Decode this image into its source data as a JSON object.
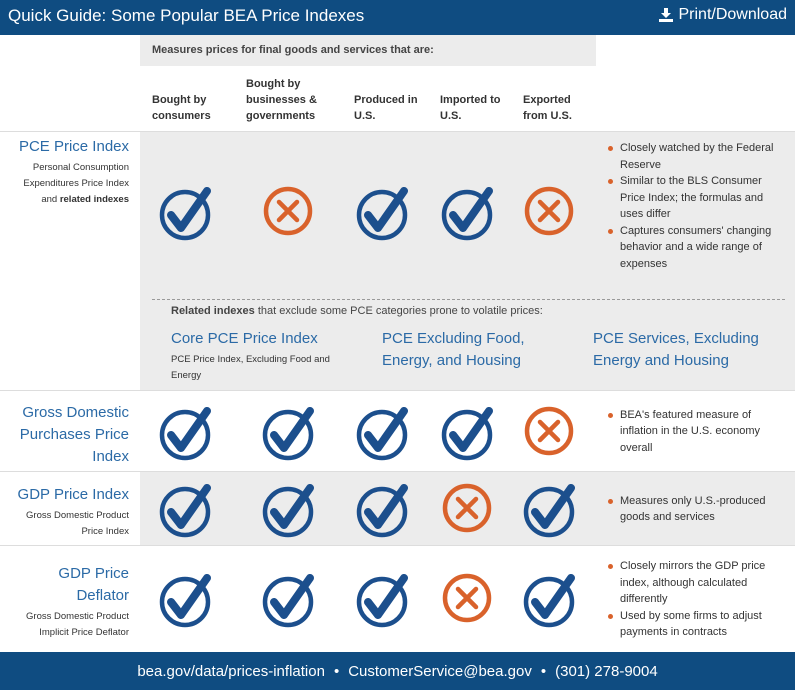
{
  "header": {
    "title": "Quick Guide: Some Popular BEA Price Indexes",
    "action": "Print/Download"
  },
  "caption": "Measures prices for final goods and services that are:",
  "columns": [
    "Bought by consumers",
    "Bought by businesses & governments",
    "Produced in U.S.",
    "Imported to U.S.",
    "Exported from U.S."
  ],
  "rows": [
    {
      "name": "PCE Price Index",
      "subtitle": "Personal Consumption Expenditures Price Index and",
      "subtitle_bold": "related indexes",
      "marks": [
        true,
        false,
        true,
        true,
        false
      ],
      "notes": [
        "Closely watched by the Federal Reserve",
        "Similar to the BLS Consumer Price Index; the formulas and uses differ",
        "Captures consumers' changing behavior and a wide range of expenses"
      ]
    },
    {
      "name": "Gross Domestic Purchases Price Index",
      "marks": [
        true,
        true,
        true,
        true,
        false
      ],
      "notes": [
        "BEA's featured measure of inflation in the U.S. economy overall"
      ]
    },
    {
      "name": "GDP Price Index",
      "subtitle": "Gross Domestic Product Price Index",
      "marks": [
        true,
        true,
        true,
        false,
        true
      ],
      "notes": [
        "Measures only U.S.-produced goods and services"
      ]
    },
    {
      "name": "GDP Price Deflator",
      "subtitle": "Gross Domestic Product Implicit Price Deflator",
      "marks": [
        true,
        true,
        true,
        false,
        true
      ],
      "notes": [
        "Closely mirrors the GDP price index, although calculated differently",
        "Used by some firms to adjust payments in contracts"
      ]
    }
  ],
  "related": {
    "intro_bold": "Related indexes",
    "intro": "that exclude some PCE categories prone to volatile prices:",
    "items": [
      {
        "name": "Core PCE Price Index",
        "desc": "PCE Price Index, Excluding Food and Energy"
      },
      {
        "name": "PCE Excluding Food, Energy, and Housing"
      },
      {
        "name": "PCE Services, Excluding Energy and Housing"
      }
    ]
  },
  "footer": {
    "items": [
      "bea.gov/data/prices-inflation",
      "CustomerService@bea.gov",
      "(301) 278-9004"
    ],
    "separator": "•"
  }
}
